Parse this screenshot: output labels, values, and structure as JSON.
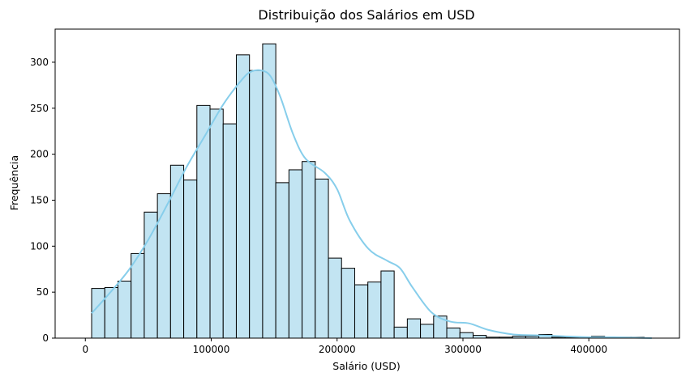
{
  "chart_data": {
    "type": "bar",
    "title": "Distribuição dos Salários em USD",
    "xlabel": "Salário (USD)",
    "ylabel": "Frequência",
    "xlim": [
      -24000,
      472000
    ],
    "ylim": [
      0,
      336
    ],
    "xticks": [
      0,
      100000,
      200000,
      300000,
      400000
    ],
    "yticks": [
      0,
      50,
      100,
      150,
      200,
      250,
      300
    ],
    "grid": false,
    "legend": "none",
    "bin_start": 5000,
    "bin_width": 10450,
    "values": [
      54,
      55,
      62,
      92,
      137,
      157,
      188,
      172,
      253,
      249,
      233,
      308,
      291,
      320,
      169,
      183,
      192,
      173,
      87,
      76,
      58,
      61,
      73,
      12,
      21,
      15,
      24,
      11,
      6,
      3,
      1,
      1,
      2,
      2,
      4,
      1,
      1,
      1,
      2,
      1,
      1,
      1
    ],
    "kde": {
      "x": [
        5000,
        20000,
        35000,
        50000,
        65000,
        80000,
        95000,
        110000,
        125000,
        132000,
        140000,
        147000,
        155000,
        165000,
        175000,
        190000,
        200000,
        210000,
        225000,
        240000,
        250000,
        260000,
        275000,
        290000,
        305000,
        320000,
        340000,
        360000,
        380000,
        400000,
        420000,
        450000
      ],
      "y": [
        27,
        50,
        75,
        107,
        145,
        185,
        220,
        255,
        282,
        290,
        291,
        285,
        262,
        222,
        195,
        180,
        162,
        128,
        97,
        84,
        76,
        55,
        28,
        18,
        16,
        9,
        4,
        3,
        2,
        1,
        1,
        0
      ]
    },
    "colors": {
      "bar_fill": "#c2e4f2",
      "bar_edge": "#000000",
      "kde": "#87ceeb"
    }
  }
}
